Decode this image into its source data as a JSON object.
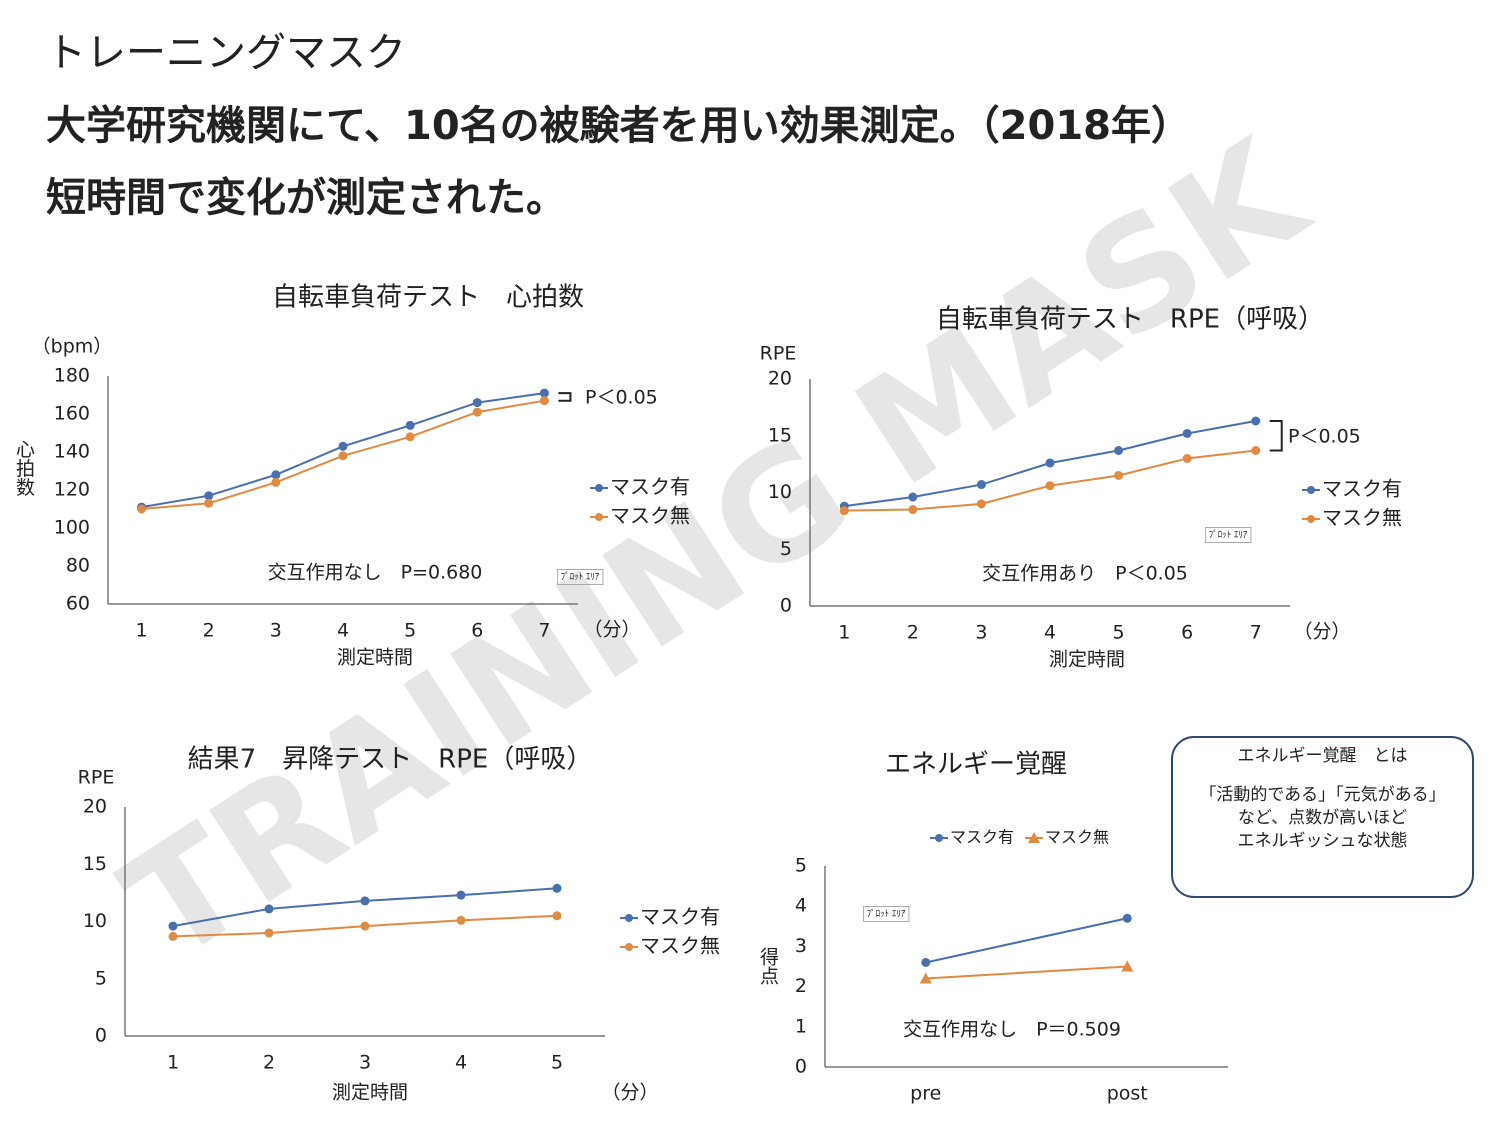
{
  "header": {
    "title": "トレーニングマスク",
    "line1": "大学研究機関にて、10名の被験者を用い効果測定。（2018年）",
    "line2": "短時間で変化が測定された。",
    "watermark": "TRAINING MASK"
  },
  "chart_data": [
    {
      "type": "line",
      "title": "自転車負荷テスト　心拍数",
      "categories": [
        "1",
        "2",
        "3",
        "4",
        "5",
        "6",
        "7"
      ],
      "series": [
        {
          "name": "マスク有",
          "color": "#4a6fae",
          "marker": "circle",
          "values": [
            111,
            117,
            128,
            143,
            154,
            166,
            171
          ]
        },
        {
          "name": "マスク無",
          "color": "#e08a44",
          "marker": "circle",
          "values": [
            110,
            113,
            124,
            138,
            148,
            161,
            167
          ]
        }
      ],
      "ylim": [
        60,
        180
      ],
      "yticks": [
        60,
        80,
        100,
        120,
        140,
        160,
        180
      ],
      "yunit": "（bpm）",
      "ylabel": "心拍数",
      "xlabel": "測定時間",
      "x_unit": "（分）",
      "annotations": [
        "P＜0.05",
        "交互作用なし　P=0.680"
      ],
      "plot_area_label": "ﾌﾟﾛｯﾄ ｴﾘｱ",
      "legend": "right",
      "grid": false
    },
    {
      "type": "line",
      "title": "自転車負荷テスト　RPE（呼吸）",
      "categories": [
        "1",
        "2",
        "3",
        "4",
        "5",
        "6",
        "7"
      ],
      "series": [
        {
          "name": "マスク有",
          "color": "#4a6fae",
          "marker": "circle",
          "values": [
            8.8,
            9.6,
            10.7,
            12.6,
            13.7,
            15.2,
            16.3
          ]
        },
        {
          "name": "マスク無",
          "color": "#e08a44",
          "marker": "circle",
          "values": [
            8.4,
            8.5,
            9.0,
            10.6,
            11.5,
            13.0,
            13.7
          ]
        }
      ],
      "ylim": [
        0,
        20
      ],
      "yticks": [
        0,
        5,
        10,
        15,
        20
      ],
      "ylabel": "RPE",
      "xlabel": "測定時間",
      "x_unit": "（分）",
      "annotations": [
        "P＜0.05",
        "交互作用あり　P＜0.05"
      ],
      "plot_area_label": "ﾌﾟﾛｯﾄ ｴﾘｱ",
      "legend": "right",
      "grid": false
    },
    {
      "type": "line",
      "title": "結果7　昇降テスト　RPE（呼吸）",
      "categories": [
        "1",
        "2",
        "3",
        "4",
        "5"
      ],
      "series": [
        {
          "name": "マスク有",
          "color": "#4a6fae",
          "marker": "circle",
          "values": [
            9.6,
            11.1,
            11.8,
            12.3,
            12.9
          ]
        },
        {
          "name": "マスク無",
          "color": "#e08a44",
          "marker": "circle",
          "values": [
            8.7,
            9.0,
            9.6,
            10.1,
            10.5
          ]
        }
      ],
      "ylim": [
        0,
        20
      ],
      "yticks": [
        0,
        5,
        10,
        15,
        20
      ],
      "ylabel": "RPE",
      "xlabel": "測定時間",
      "x_unit": "（分）",
      "legend": "right",
      "grid": false
    },
    {
      "type": "line",
      "title": "エネルギー覚醒",
      "categories": [
        "pre",
        "post"
      ],
      "series": [
        {
          "name": "マスク有",
          "color": "#4a6fae",
          "marker": "circle",
          "values": [
            2.6,
            3.7
          ]
        },
        {
          "name": "マスク無",
          "color": "#e08a44",
          "marker": "triangle",
          "values": [
            2.2,
            2.5
          ]
        }
      ],
      "ylim": [
        0,
        5
      ],
      "yticks": [
        0,
        1,
        2,
        3,
        4,
        5
      ],
      "ylabel": "得点",
      "annotations": [
        "交互作用なし　P＝0.509"
      ],
      "plot_area_label": "ﾌﾟﾛｯﾄ ｴﾘｱ",
      "legend": "top",
      "grid": false,
      "note": {
        "title": "エネルギー覚醒　とは",
        "lines": [
          "「活動的である」「元気がある」",
          "など、点数が高いほど",
          "エネルギッシュな状態"
        ]
      }
    }
  ]
}
